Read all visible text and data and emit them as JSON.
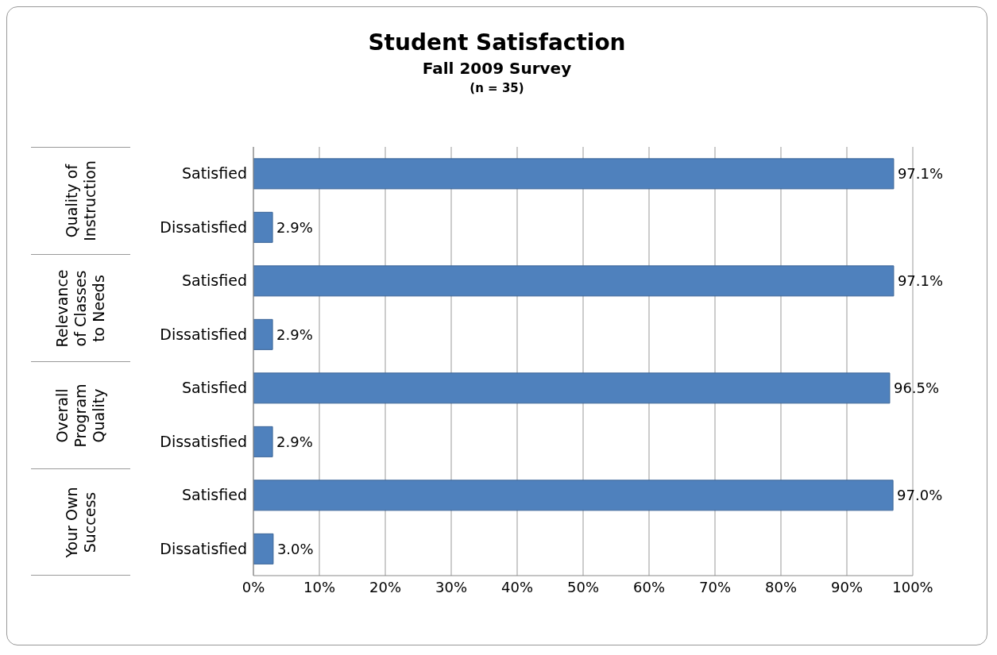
{
  "chart_data": {
    "type": "bar",
    "orientation": "horizontal",
    "title": "Student Satisfaction",
    "subtitle": "Fall 2009 Survey\n(n = 35)",
    "categories": [
      "Satisfied",
      "Dissatisfied",
      "Satisfied",
      "Dissatisfied",
      "Satisfied",
      "Dissatisfied",
      "Satisfied",
      "Dissatisfied"
    ],
    "values": [
      97.1,
      2.9,
      97.1,
      2.9,
      96.5,
      2.9,
      97.0,
      3.0
    ],
    "value_labels": [
      "97.1%",
      "2.9%",
      "97.1%",
      "2.9%",
      "96.5%",
      "2.9%",
      "97.0%",
      "3.0%"
    ],
    "color": "#4f81bd",
    "annotations": [
      "Quality of Instruction",
      "Relevance of Classes to Needs",
      "Overall Program Quality",
      "Your Own Success"
    ],
    "xlim": [
      0,
      100
    ],
    "xticks": [
      {
        "value": 0,
        "label": "0%"
      },
      {
        "value": 10,
        "label": "10%"
      },
      {
        "value": 20,
        "label": "20%"
      },
      {
        "value": 30,
        "label": "30%"
      },
      {
        "value": 40,
        "label": "40%"
      },
      {
        "value": 50,
        "label": "50%"
      },
      {
        "value": 60,
        "label": "60%"
      },
      {
        "value": 70,
        "label": "70%"
      },
      {
        "value": 80,
        "label": "80%"
      },
      {
        "value": 90,
        "label": "90%"
      },
      {
        "value": 100,
        "label": "100%"
      }
    ],
    "grid": "x",
    "legend": false
  }
}
